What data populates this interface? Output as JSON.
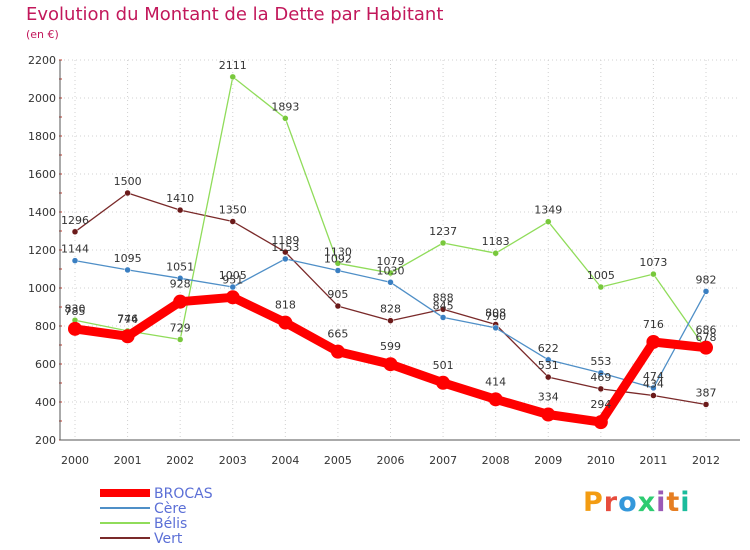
{
  "header": {
    "title": "Evolution du Montant de la Dette par Habitant",
    "unit": "(en €)"
  },
  "logo": {
    "letters": [
      "P",
      "r",
      "o",
      "x",
      "i",
      "t",
      "i"
    ],
    "colors": [
      "#f39c12",
      "#e74c3c",
      "#3498db",
      "#2ecc71",
      "#9b59b6",
      "#e67e22",
      "#1abc9c"
    ]
  },
  "chart_data": {
    "type": "line",
    "title": "Evolution du Montant de la Dette par Habitant",
    "ylabel": "(en €)",
    "xlabel": "",
    "x": [
      "2000",
      "2001",
      "2002",
      "2003",
      "2004",
      "2005",
      "2006",
      "2007",
      "2008",
      "2009",
      "2010",
      "2011",
      "2012"
    ],
    "ylim": [
      200,
      2200
    ],
    "yticks": [
      200,
      400,
      600,
      800,
      1000,
      1200,
      1400,
      1600,
      1800,
      2000,
      2200
    ],
    "grid": true,
    "legend_position": "bottom-left",
    "series": [
      {
        "name": "BROCAS",
        "color": "#ff0000",
        "emphasis": true,
        "values": [
          785,
          746,
          928,
          951,
          818,
          665,
          599,
          501,
          414,
          334,
          294,
          716,
          686
        ]
      },
      {
        "name": "Cère",
        "color": "#4f8fc7",
        "marker_color": "#3a7fc2",
        "values": [
          1144,
          1095,
          1051,
          1005,
          1153,
          1092,
          1030,
          845,
          790,
          622,
          553,
          474,
          982
        ]
      },
      {
        "name": "Bélis",
        "color": "#90dc5a",
        "marker_color": "#78c83c",
        "values": [
          830,
          774,
          729,
          2111,
          1893,
          1130,
          1079,
          1237,
          1183,
          1349,
          1005,
          1073,
          678
        ]
      },
      {
        "name": "Vert",
        "color": "#7a2a2a",
        "marker_color": "#6b1a1a",
        "values": [
          1296,
          1500,
          1410,
          1350,
          1189,
          905,
          828,
          888,
          808,
          531,
          469,
          434,
          387
        ]
      }
    ]
  }
}
